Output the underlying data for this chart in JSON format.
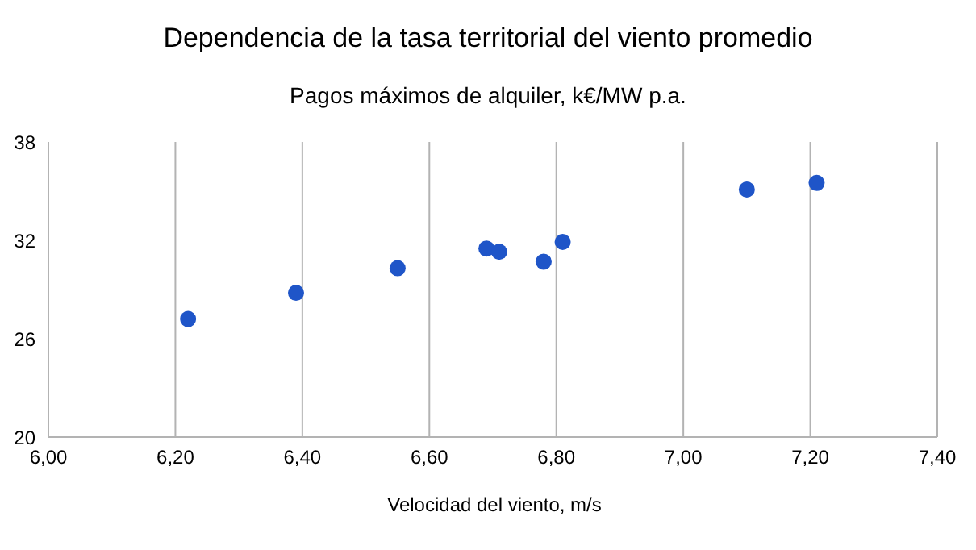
{
  "chart_data": {
    "type": "scatter",
    "title": "Dependencia de la tasa territorial del viento promedio",
    "subtitle": "Pagos máximos de alquiler, k€/MW p.a.",
    "xlabel": "Velocidad del viento, m/s",
    "x": [
      6.22,
      6.39,
      6.55,
      6.69,
      6.71,
      6.78,
      6.81,
      7.1,
      7.21
    ],
    "values": [
      27.2,
      28.8,
      30.3,
      31.5,
      31.3,
      30.7,
      31.9,
      35.1,
      35.5
    ],
    "color": "#1f55c8",
    "marker": "circle",
    "xlim": [
      6.0,
      7.4
    ],
    "xticks": [
      {
        "value": 6.0,
        "label": "6,00"
      },
      {
        "value": 6.2,
        "label": "6,20"
      },
      {
        "value": 6.4,
        "label": "6,40"
      },
      {
        "value": 6.6,
        "label": "6,60"
      },
      {
        "value": 6.8,
        "label": "6,80"
      },
      {
        "value": 7.0,
        "label": "7,00"
      },
      {
        "value": 7.2,
        "label": "7,20"
      },
      {
        "value": 7.4,
        "label": "7,40"
      }
    ],
    "ylim": [
      20,
      38
    ],
    "yticks": [
      20,
      26,
      32,
      38
    ],
    "grid": "x",
    "legend": false
  }
}
